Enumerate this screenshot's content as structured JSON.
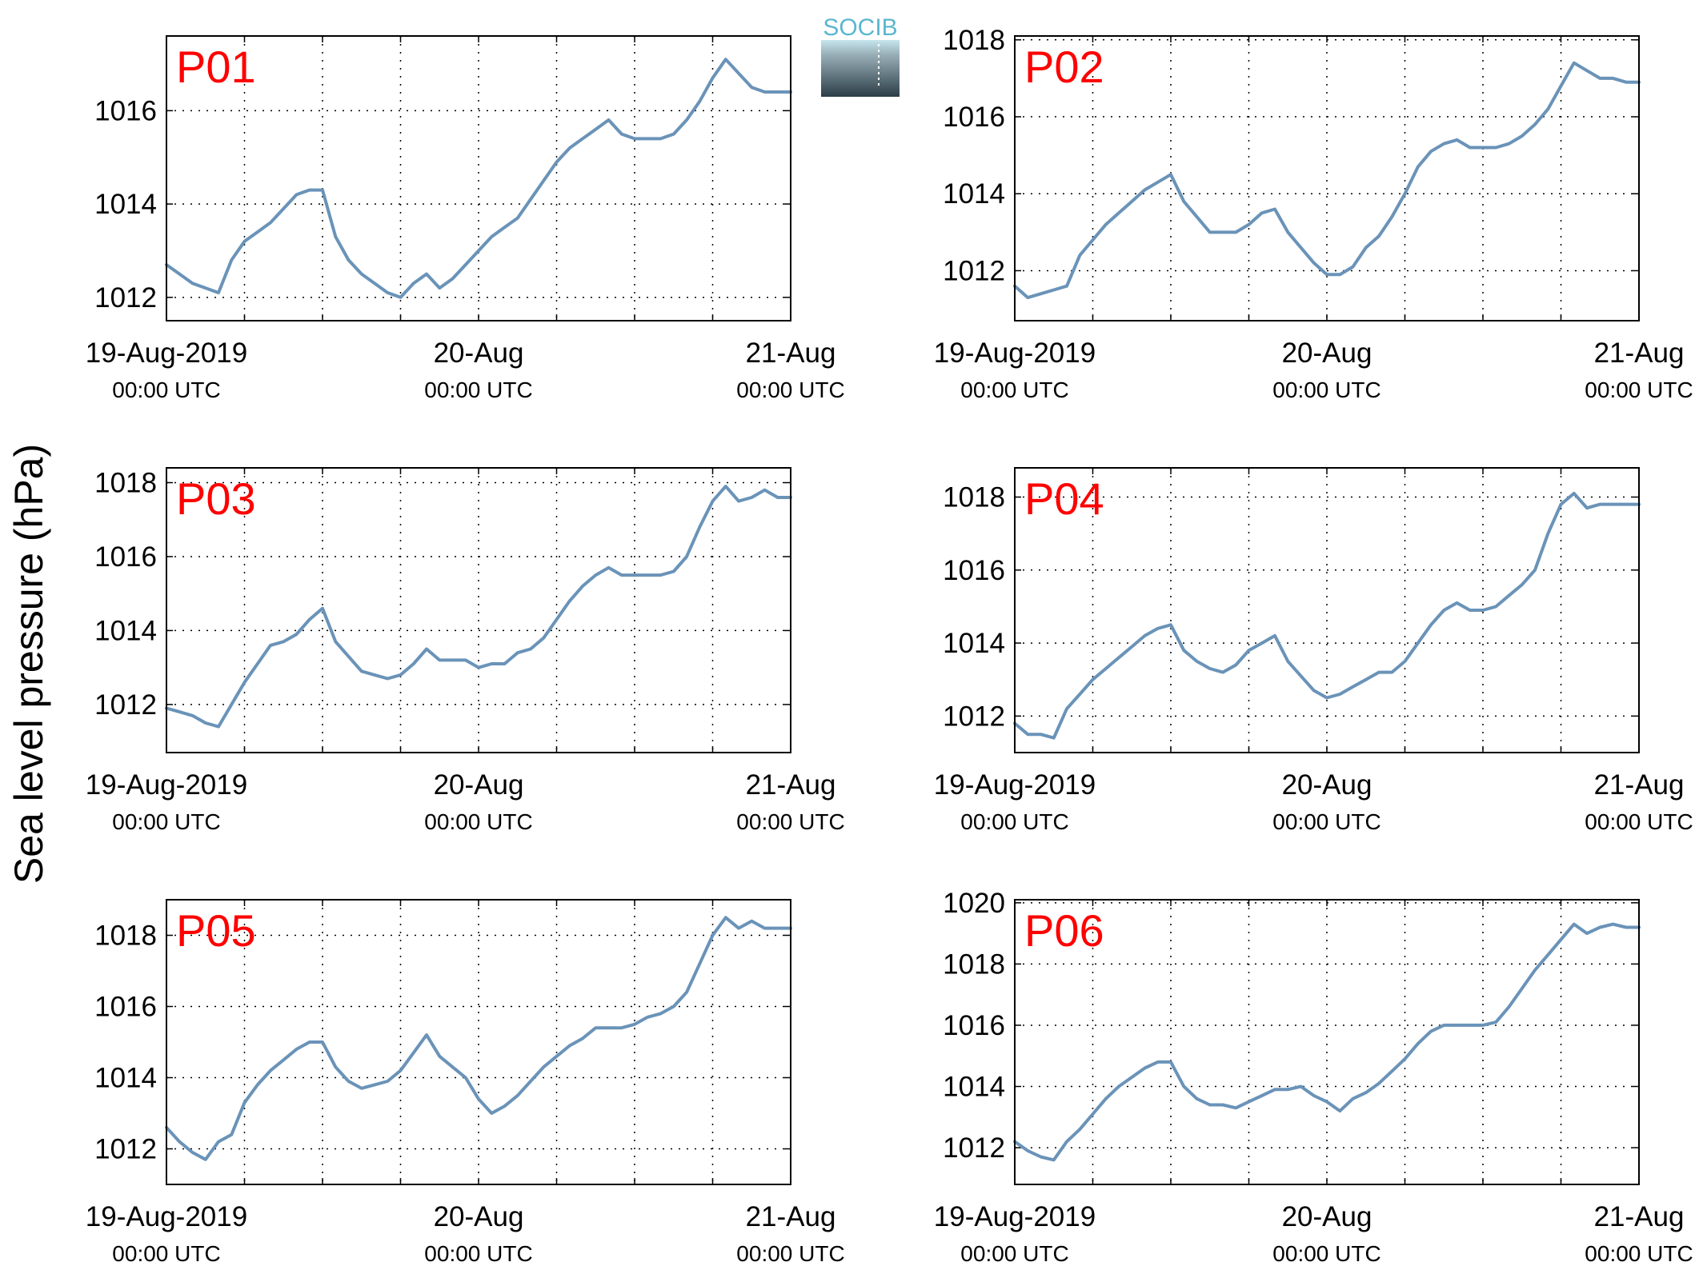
{
  "figure": {
    "ylabel": "Sea level pressure (hPa)",
    "logo_text": "SOCIB",
    "line_color": "#6a93b8",
    "title_color": "#ff0000"
  },
  "chart_data": [
    {
      "type": "line",
      "title": "P01",
      "xlim": [
        "2019-08-19 00:00",
        "2019-08-21 00:00"
      ],
      "ylim": [
        1011.5,
        1017.6
      ],
      "yticks": [
        1012,
        1014,
        1016
      ],
      "xtick_labels": [
        {
          "date": "19-Aug-2019",
          "time": "00:00 UTC"
        },
        {
          "date": "20-Aug",
          "time": "00:00 UTC"
        },
        {
          "date": "21-Aug",
          "time": "00:00 UTC"
        }
      ],
      "grid": true,
      "series": [
        {
          "x_hours": [
            0,
            1,
            2,
            3,
            4,
            5,
            6,
            7,
            8,
            9,
            10,
            11,
            12,
            13,
            14,
            15,
            16,
            17,
            18,
            19,
            20,
            21,
            22,
            23,
            24,
            25,
            26,
            27,
            28,
            29,
            30,
            31,
            32,
            33,
            34,
            35,
            36,
            37,
            38,
            39,
            40,
            41,
            42,
            43,
            44,
            45,
            46,
            47,
            48
          ],
          "values": [
            1012.7,
            1012.5,
            1012.3,
            1012.2,
            1012.1,
            1012.8,
            1013.2,
            1013.4,
            1013.6,
            1013.9,
            1014.2,
            1014.3,
            1014.3,
            1013.3,
            1012.8,
            1012.5,
            1012.3,
            1012.1,
            1012.0,
            1012.3,
            1012.5,
            1012.2,
            1012.4,
            1012.7,
            1013.0,
            1013.3,
            1013.5,
            1013.7,
            1014.1,
            1014.5,
            1014.9,
            1015.2,
            1015.4,
            1015.6,
            1015.8,
            1015.5,
            1015.4,
            1015.4,
            1015.4,
            1015.5,
            1015.8,
            1016.2,
            1016.7,
            1017.1,
            1016.8,
            1016.5,
            1016.4,
            1016.4,
            1016.4
          ]
        }
      ]
    },
    {
      "type": "line",
      "title": "P02",
      "xlim": [
        "2019-08-19 00:00",
        "2019-08-21 00:00"
      ],
      "ylim": [
        1010.7,
        1018.1
      ],
      "yticks": [
        1012,
        1014,
        1016,
        1018
      ],
      "xtick_labels": [
        {
          "date": "19-Aug-2019",
          "time": "00:00 UTC"
        },
        {
          "date": "20-Aug",
          "time": "00:00 UTC"
        },
        {
          "date": "21-Aug",
          "time": "00:00 UTC"
        }
      ],
      "grid": true,
      "series": [
        {
          "x_hours": [
            0,
            1,
            2,
            3,
            4,
            5,
            6,
            7,
            8,
            9,
            10,
            11,
            12,
            13,
            14,
            15,
            16,
            17,
            18,
            19,
            20,
            21,
            22,
            23,
            24,
            25,
            26,
            27,
            28,
            29,
            30,
            31,
            32,
            33,
            34,
            35,
            36,
            37,
            38,
            39,
            40,
            41,
            42,
            43,
            44,
            45,
            46,
            47,
            48
          ],
          "values": [
            1011.6,
            1011.3,
            1011.4,
            1011.5,
            1011.6,
            1012.4,
            1012.8,
            1013.2,
            1013.5,
            1013.8,
            1014.1,
            1014.3,
            1014.5,
            1013.8,
            1013.4,
            1013.0,
            1013.0,
            1013.0,
            1013.2,
            1013.5,
            1013.6,
            1013.0,
            1012.6,
            1012.2,
            1011.9,
            1011.9,
            1012.1,
            1012.6,
            1012.9,
            1013.4,
            1014.0,
            1014.7,
            1015.1,
            1015.3,
            1015.4,
            1015.2,
            1015.2,
            1015.2,
            1015.3,
            1015.5,
            1015.8,
            1016.2,
            1016.8,
            1017.4,
            1017.2,
            1017.0,
            1017.0,
            1016.9,
            1016.9
          ]
        }
      ]
    },
    {
      "type": "line",
      "title": "P03",
      "xlim": [
        "2019-08-19 00:00",
        "2019-08-21 00:00"
      ],
      "ylim": [
        1010.7,
        1018.4
      ],
      "yticks": [
        1012,
        1014,
        1016,
        1018
      ],
      "xtick_labels": [
        {
          "date": "19-Aug-2019",
          "time": "00:00 UTC"
        },
        {
          "date": "20-Aug",
          "time": "00:00 UTC"
        },
        {
          "date": "21-Aug",
          "time": "00:00 UTC"
        }
      ],
      "grid": true,
      "series": [
        {
          "x_hours": [
            0,
            1,
            2,
            3,
            4,
            5,
            6,
            7,
            8,
            9,
            10,
            11,
            12,
            13,
            14,
            15,
            16,
            17,
            18,
            19,
            20,
            21,
            22,
            23,
            24,
            25,
            26,
            27,
            28,
            29,
            30,
            31,
            32,
            33,
            34,
            35,
            36,
            37,
            38,
            39,
            40,
            41,
            42,
            43,
            44,
            45,
            46,
            47,
            48
          ],
          "values": [
            1011.9,
            1011.8,
            1011.7,
            1011.5,
            1011.4,
            1012.0,
            1012.6,
            1013.1,
            1013.6,
            1013.7,
            1013.9,
            1014.3,
            1014.6,
            1013.7,
            1013.3,
            1012.9,
            1012.8,
            1012.7,
            1012.8,
            1013.1,
            1013.5,
            1013.2,
            1013.2,
            1013.2,
            1013.0,
            1013.1,
            1013.1,
            1013.4,
            1013.5,
            1013.8,
            1014.3,
            1014.8,
            1015.2,
            1015.5,
            1015.7,
            1015.5,
            1015.5,
            1015.5,
            1015.5,
            1015.6,
            1016.0,
            1016.8,
            1017.5,
            1017.9,
            1017.5,
            1017.6,
            1017.8,
            1017.6,
            1017.6
          ]
        }
      ]
    },
    {
      "type": "line",
      "title": "P04",
      "xlim": [
        "2019-08-19 00:00",
        "2019-08-21 00:00"
      ],
      "ylim": [
        1011.0,
        1018.8
      ],
      "yticks": [
        1012,
        1014,
        1016,
        1018
      ],
      "xtick_labels": [
        {
          "date": "19-Aug-2019",
          "time": "00:00 UTC"
        },
        {
          "date": "20-Aug",
          "time": "00:00 UTC"
        },
        {
          "date": "21-Aug",
          "time": "00:00 UTC"
        }
      ],
      "grid": true,
      "series": [
        {
          "x_hours": [
            0,
            1,
            2,
            3,
            4,
            5,
            6,
            7,
            8,
            9,
            10,
            11,
            12,
            13,
            14,
            15,
            16,
            17,
            18,
            19,
            20,
            21,
            22,
            23,
            24,
            25,
            26,
            27,
            28,
            29,
            30,
            31,
            32,
            33,
            34,
            35,
            36,
            37,
            38,
            39,
            40,
            41,
            42,
            43,
            44,
            45,
            46,
            47,
            48
          ],
          "values": [
            1011.8,
            1011.5,
            1011.5,
            1011.4,
            1012.2,
            1012.6,
            1013.0,
            1013.3,
            1013.6,
            1013.9,
            1014.2,
            1014.4,
            1014.5,
            1013.8,
            1013.5,
            1013.3,
            1013.2,
            1013.4,
            1013.8,
            1014.0,
            1014.2,
            1013.5,
            1013.1,
            1012.7,
            1012.5,
            1012.6,
            1012.8,
            1013.0,
            1013.2,
            1013.2,
            1013.5,
            1014.0,
            1014.5,
            1014.9,
            1015.1,
            1014.9,
            1014.9,
            1015.0,
            1015.3,
            1015.6,
            1016.0,
            1017.0,
            1017.8,
            1018.1,
            1017.7,
            1017.8,
            1017.8,
            1017.8,
            1017.8
          ]
        }
      ]
    },
    {
      "type": "line",
      "title": "P05",
      "xlim": [
        "2019-08-19 00:00",
        "2019-08-21 00:00"
      ],
      "ylim": [
        1011.0,
        1019.0
      ],
      "yticks": [
        1012,
        1014,
        1016,
        1018
      ],
      "xtick_labels": [
        {
          "date": "19-Aug-2019",
          "time": "00:00 UTC"
        },
        {
          "date": "20-Aug",
          "time": "00:00 UTC"
        },
        {
          "date": "21-Aug",
          "time": "00:00 UTC"
        }
      ],
      "grid": true,
      "series": [
        {
          "x_hours": [
            0,
            1,
            2,
            3,
            4,
            5,
            6,
            7,
            8,
            9,
            10,
            11,
            12,
            13,
            14,
            15,
            16,
            17,
            18,
            19,
            20,
            21,
            22,
            23,
            24,
            25,
            26,
            27,
            28,
            29,
            30,
            31,
            32,
            33,
            34,
            35,
            36,
            37,
            38,
            39,
            40,
            41,
            42,
            43,
            44,
            45,
            46,
            47,
            48
          ],
          "values": [
            1012.6,
            1012.2,
            1011.9,
            1011.7,
            1012.2,
            1012.4,
            1013.3,
            1013.8,
            1014.2,
            1014.5,
            1014.8,
            1015.0,
            1015.0,
            1014.3,
            1013.9,
            1013.7,
            1013.8,
            1013.9,
            1014.2,
            1014.7,
            1015.2,
            1014.6,
            1014.3,
            1014.0,
            1013.4,
            1013.0,
            1013.2,
            1013.5,
            1013.9,
            1014.3,
            1014.6,
            1014.9,
            1015.1,
            1015.4,
            1015.4,
            1015.4,
            1015.5,
            1015.7,
            1015.8,
            1016.0,
            1016.4,
            1017.2,
            1018.0,
            1018.5,
            1018.2,
            1018.4,
            1018.2,
            1018.2,
            1018.2
          ]
        }
      ]
    },
    {
      "type": "line",
      "title": "P06",
      "xlim": [
        "2019-08-19 00:00",
        "2019-08-21 00:00"
      ],
      "ylim": [
        1010.8,
        1020.1
      ],
      "yticks": [
        1012,
        1014,
        1016,
        1018,
        1020
      ],
      "xtick_labels": [
        {
          "date": "19-Aug-2019",
          "time": "00:00 UTC"
        },
        {
          "date": "20-Aug",
          "time": "00:00 UTC"
        },
        {
          "date": "21-Aug",
          "time": "00:00 UTC"
        }
      ],
      "grid": true,
      "series": [
        {
          "x_hours": [
            0,
            1,
            2,
            3,
            4,
            5,
            6,
            7,
            8,
            9,
            10,
            11,
            12,
            13,
            14,
            15,
            16,
            17,
            18,
            19,
            20,
            21,
            22,
            23,
            24,
            25,
            26,
            27,
            28,
            29,
            30,
            31,
            32,
            33,
            34,
            35,
            36,
            37,
            38,
            39,
            40,
            41,
            42,
            43,
            44,
            45,
            46,
            47,
            48
          ],
          "values": [
            1012.2,
            1011.9,
            1011.7,
            1011.6,
            1012.2,
            1012.6,
            1013.1,
            1013.6,
            1014.0,
            1014.3,
            1014.6,
            1014.8,
            1014.8,
            1014.0,
            1013.6,
            1013.4,
            1013.4,
            1013.3,
            1013.5,
            1013.7,
            1013.9,
            1013.9,
            1014.0,
            1013.7,
            1013.5,
            1013.2,
            1013.6,
            1013.8,
            1014.1,
            1014.5,
            1014.9,
            1015.4,
            1015.8,
            1016.0,
            1016.0,
            1016.0,
            1016.0,
            1016.1,
            1016.6,
            1017.2,
            1017.8,
            1018.3,
            1018.8,
            1019.3,
            1019.0,
            1019.2,
            1019.3,
            1019.2,
            1019.2
          ]
        }
      ]
    }
  ]
}
